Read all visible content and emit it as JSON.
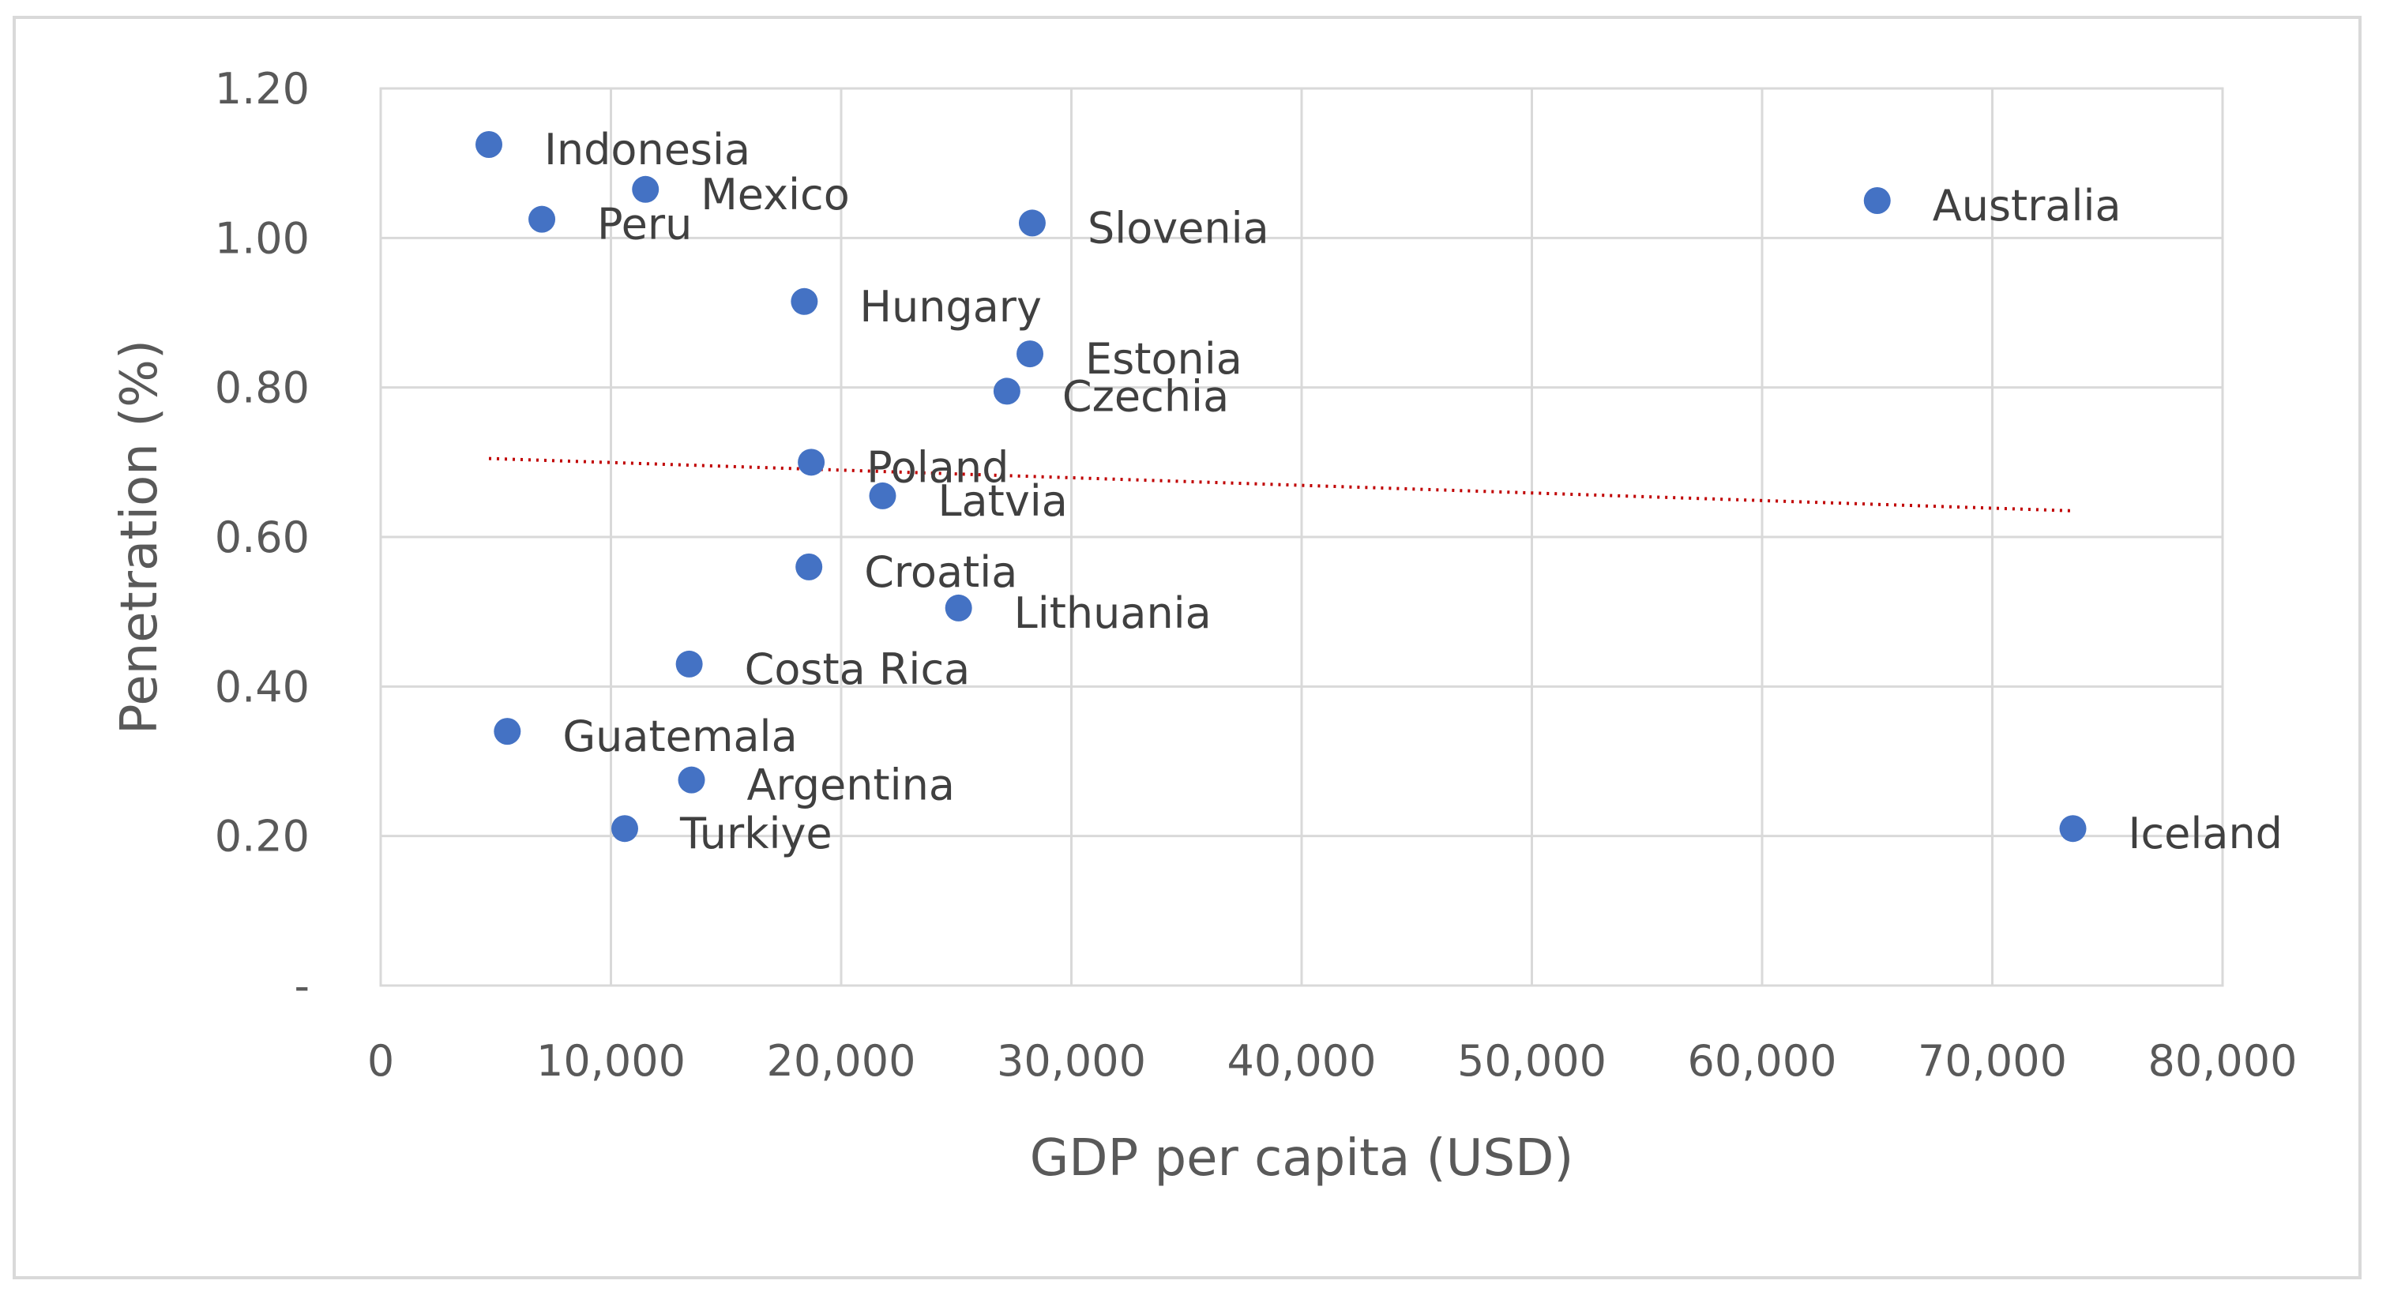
{
  "chart_data": {
    "type": "scatter",
    "title": "",
    "xlabel": "GDP per capita (USD)",
    "ylabel": "Penetration (%)",
    "xlim": [
      0,
      80000
    ],
    "ylim": [
      0,
      1.2
    ],
    "x_ticks": [
      0,
      10000,
      20000,
      30000,
      40000,
      50000,
      60000,
      70000,
      80000
    ],
    "x_tick_labels": [
      "0",
      "10,000",
      "20,000",
      "30,000",
      "40,000",
      "50,000",
      "60,000",
      "70,000",
      "80,000"
    ],
    "y_ticks": [
      0,
      0.2,
      0.4,
      0.6,
      0.8,
      1.0,
      1.2
    ],
    "y_tick_labels": [
      "-",
      "0.20",
      "0.40",
      "0.60",
      "0.80",
      "1.00",
      "1.20"
    ],
    "grid": true,
    "point_color": "#4472C4",
    "trendline": {
      "type": "linear",
      "color": "#C00000",
      "style": "dotted",
      "x": [
        4700,
        73500
      ],
      "y": [
        0.705,
        0.635
      ]
    },
    "points": [
      {
        "label": "Indonesia",
        "x": 4700,
        "y": 1.125
      },
      {
        "label": "Mexico",
        "x": 11500,
        "y": 1.065
      },
      {
        "label": "Peru",
        "x": 7000,
        "y": 1.025
      },
      {
        "label": "Slovenia",
        "x": 28300,
        "y": 1.02
      },
      {
        "label": "Australia",
        "x": 65000,
        "y": 1.05
      },
      {
        "label": "Hungary",
        "x": 18400,
        "y": 0.915
      },
      {
        "label": "Estonia",
        "x": 28200,
        "y": 0.845
      },
      {
        "label": "Czechia",
        "x": 27200,
        "y": 0.795
      },
      {
        "label": "Poland",
        "x": 18700,
        "y": 0.7
      },
      {
        "label": "Latvia",
        "x": 21800,
        "y": 0.655
      },
      {
        "label": "Croatia",
        "x": 18600,
        "y": 0.56
      },
      {
        "label": "Lithuania",
        "x": 25100,
        "y": 0.505
      },
      {
        "label": "Costa Rica",
        "x": 13400,
        "y": 0.43
      },
      {
        "label": "Guatemala",
        "x": 5500,
        "y": 0.34
      },
      {
        "label": "Argentina",
        "x": 13500,
        "y": 0.275
      },
      {
        "label": "Turkiye",
        "x": 10600,
        "y": 0.21
      },
      {
        "label": "Iceland",
        "x": 73500,
        "y": 0.21
      }
    ]
  }
}
